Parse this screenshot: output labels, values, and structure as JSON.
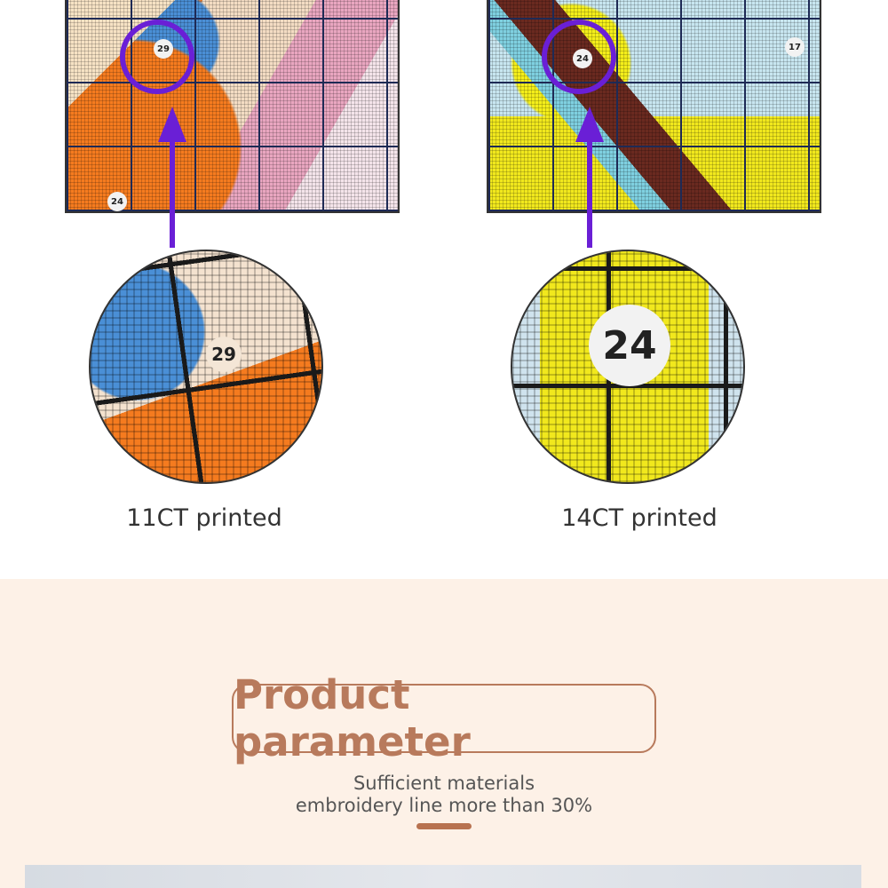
{
  "comparison": [
    {
      "label": "11CT printed",
      "zoom_number": "29",
      "photo_numbers": [
        "29",
        "24"
      ]
    },
    {
      "label": "14CT printed",
      "zoom_number": "24",
      "photo_numbers": [
        "24",
        "17"
      ]
    }
  ],
  "section": {
    "title": "Product parameter",
    "subtitle_line1": "Sufficient materials",
    "subtitle_line2": "embroidery line more than 30%"
  },
  "colors": {
    "accent": "#b87a5c",
    "arrow": "#6a1fd6",
    "background": "#fdf1e7"
  }
}
